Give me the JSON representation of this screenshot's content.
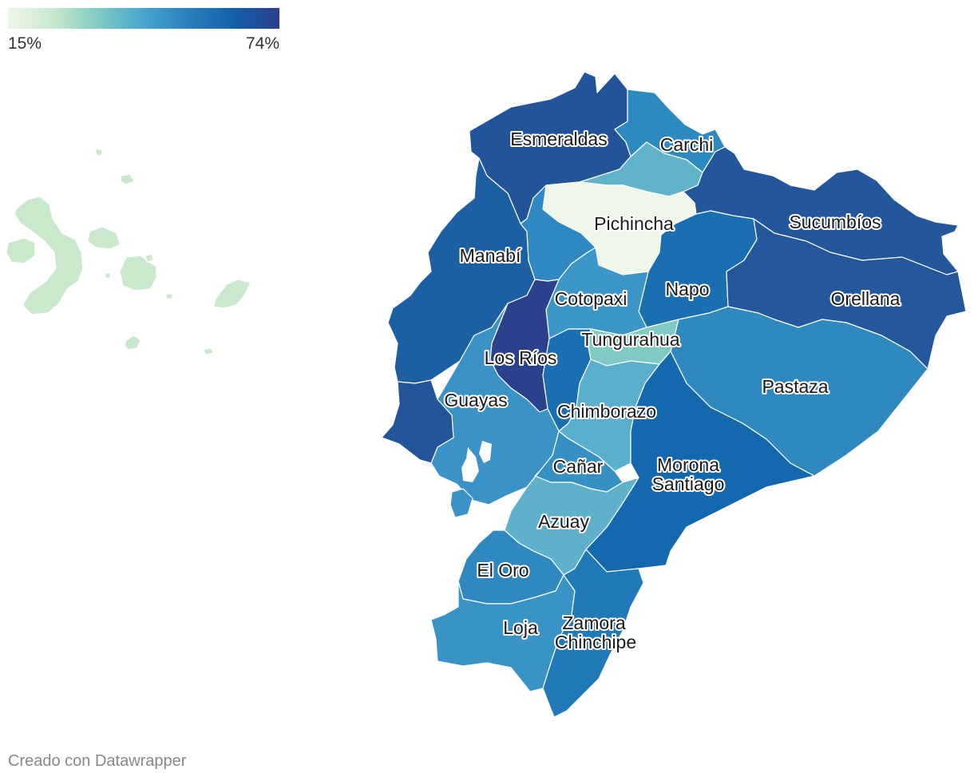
{
  "legend": {
    "min_label": "15%",
    "max_label": "74%",
    "min_value": 15,
    "max_value": 74,
    "colors": [
      "#eef7e8",
      "#c9e8cc",
      "#7fcbc4",
      "#46a6ce",
      "#2b7fbc",
      "#1360a8",
      "#2b3f8c"
    ]
  },
  "credit": "Creado con Datawrapper",
  "regions": [
    {
      "id": "galapagos",
      "name": "",
      "color": "#c9e8cc"
    },
    {
      "id": "esmeraldas",
      "name": "Esmeraldas",
      "color": "#23549a"
    },
    {
      "id": "carchi",
      "name": "Carchi",
      "color": "#2d8ac0"
    },
    {
      "id": "imbabura",
      "name": "",
      "color": "#60b3c9"
    },
    {
      "id": "pichincha",
      "name": "Pichincha",
      "color": "#eef7e8"
    },
    {
      "id": "sucumbios",
      "name": "Sucumbíos",
      "color": "#23569b"
    },
    {
      "id": "manabi",
      "name": "Manabí",
      "color": "#1d5fa3"
    },
    {
      "id": "santo-domingo",
      "name": "",
      "color": "#2f88c2"
    },
    {
      "id": "napo",
      "name": "Napo",
      "color": "#1a6fb0"
    },
    {
      "id": "orellana",
      "name": "Orellana",
      "color": "#24579b"
    },
    {
      "id": "cotopaxi",
      "name": "Cotopaxi",
      "color": "#3c97c8"
    },
    {
      "id": "los-rios",
      "name": "Los Ríos",
      "color": "#2b418e"
    },
    {
      "id": "tungurahua",
      "name": "Tungurahua",
      "color": "#7fcbc4"
    },
    {
      "id": "bolivar",
      "name": "",
      "color": "#1a6fb3"
    },
    {
      "id": "pastaza",
      "name": "Pastaza",
      "color": "#2f89bf"
    },
    {
      "id": "guayas",
      "name": "Guayas",
      "color": "#3a92c6"
    },
    {
      "id": "santa-elena",
      "name": "",
      "color": "#24549a"
    },
    {
      "id": "chimborazo",
      "name": "Chimborazo",
      "color": "#5aafcc"
    },
    {
      "id": "canar",
      "name": "Cañar",
      "color": "#3790c4"
    },
    {
      "id": "morona-santiago",
      "name": "Morona Santiago",
      "color": "#1468ad"
    },
    {
      "id": "azuay",
      "name": "Azuay",
      "color": "#5fb1cb"
    },
    {
      "id": "el-oro",
      "name": "El Oro",
      "color": "#2f88c0"
    },
    {
      "id": "loja",
      "name": "Loja",
      "color": "#3a93c5"
    },
    {
      "id": "zamora-chinchipe",
      "name": "Zamora Chinchipe",
      "color": "#2279b8"
    }
  ]
}
